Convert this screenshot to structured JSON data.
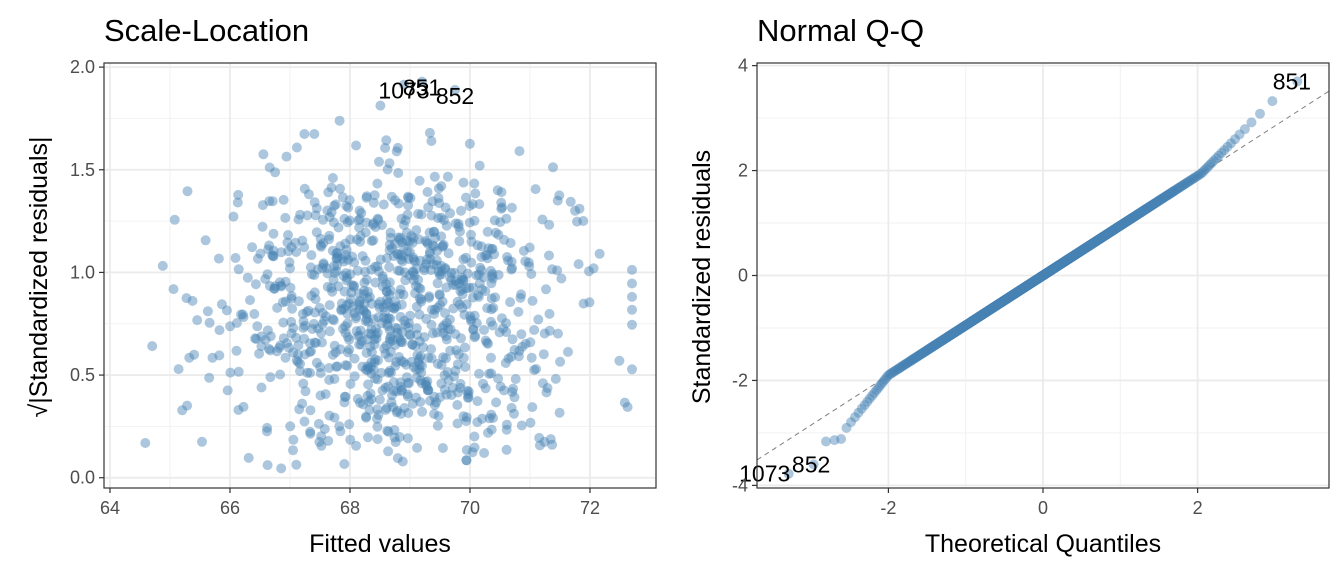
{
  "chart_data": [
    {
      "type": "scatter",
      "title": "Scale-Location",
      "xlabel": "Fitted values",
      "ylabel": "√|Standardized residuals|",
      "xlim": [
        63.9,
        73.1
      ],
      "ylim": [
        -0.05,
        2.02
      ],
      "xticks": [
        64,
        66,
        68,
        70,
        72
      ],
      "yticks": [
        0.0,
        0.5,
        1.0,
        1.5,
        2.0
      ],
      "ytick_labels": [
        "0.0",
        "0.5",
        "1.0",
        "1.5",
        "2.0"
      ],
      "grid": true,
      "point_color": "#4682B4",
      "n_points": 1000,
      "x_center": 68.8,
      "x_spread": 1.45,
      "labels": [
        {
          "text": "1073",
          "x": 68.9,
          "y": 1.885
        },
        {
          "text": "851",
          "x": 69.2,
          "y": 1.9
        },
        {
          "text": "852",
          "x": 69.75,
          "y": 1.86
        }
      ]
    },
    {
      "type": "scatter",
      "title": "Normal Q-Q",
      "xlabel": "Theoretical Quantiles",
      "ylabel": "Standardized residuals",
      "xlim": [
        -3.7,
        3.7
      ],
      "ylim": [
        -4.05,
        4.05
      ],
      "xticks": [
        -2,
        0,
        2
      ],
      "yticks": [
        -4,
        -2,
        0,
        2,
        4
      ],
      "grid": true,
      "point_color": "#4682B4",
      "n_points": 1000,
      "reference_line": {
        "intercept": 0,
        "slope": 0.95,
        "style": "dashed",
        "color": "#808080"
      },
      "labels": [
        {
          "text": "851",
          "x": 3.22,
          "y": 3.7
        },
        {
          "text": "852",
          "x": -3.0,
          "y": -3.6
        },
        {
          "text": "1073",
          "x": -3.6,
          "y": -3.77
        }
      ]
    }
  ]
}
